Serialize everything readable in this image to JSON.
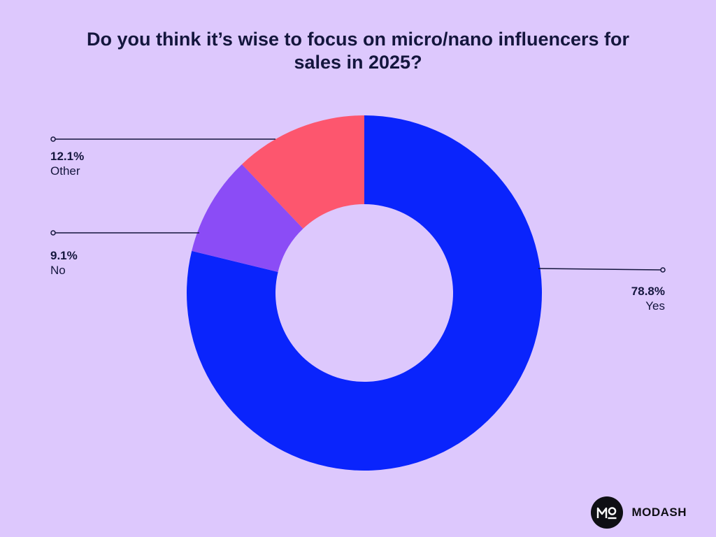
{
  "chart_data": {
    "type": "pie",
    "title": "Do you think it’s wise to focus on micro/nano influencers for",
    "title_line2": "sales in 2025?",
    "slices": [
      {
        "label": "Yes",
        "value": 78.8,
        "value_label": "78.8%",
        "color": "#0a24fc"
      },
      {
        "label": "No",
        "value": 9.1,
        "value_label": "9.1%",
        "color": "#8b4cf6"
      },
      {
        "label": "Other",
        "value": 12.1,
        "value_label": "12.1%",
        "color": "#fd566e"
      }
    ],
    "donut": true,
    "start": "top",
    "direction": "clockwise",
    "background": "#ddc8fd"
  },
  "brand": {
    "name": "MODASH",
    "logo_text": "MO"
  }
}
